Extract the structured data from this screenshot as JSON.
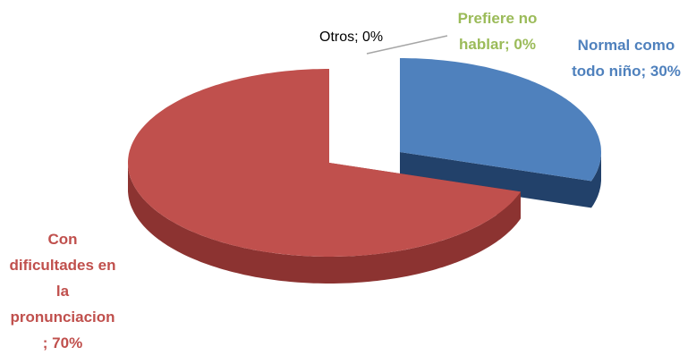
{
  "chart_data": {
    "type": "pie3d",
    "values": [
      30,
      70,
      0,
      0
    ],
    "value_labels": [
      "Normal como todo niño; 30%",
      "Con dificultades en la pronunciacion; 70%",
      "Prefiere no hablar; 0%",
      "Otros; 0%"
    ],
    "colors": [
      "#4f81bd",
      "#c0504d",
      "#9bbb59",
      "#a5a5a5"
    ],
    "side_colors": [
      "#22416a",
      "#8c3331",
      "#6f8a3c",
      "#777777"
    ],
    "label_colors": [
      "#4f81bd",
      "#c0504d",
      "#9bbb59",
      "#000000"
    ]
  }
}
